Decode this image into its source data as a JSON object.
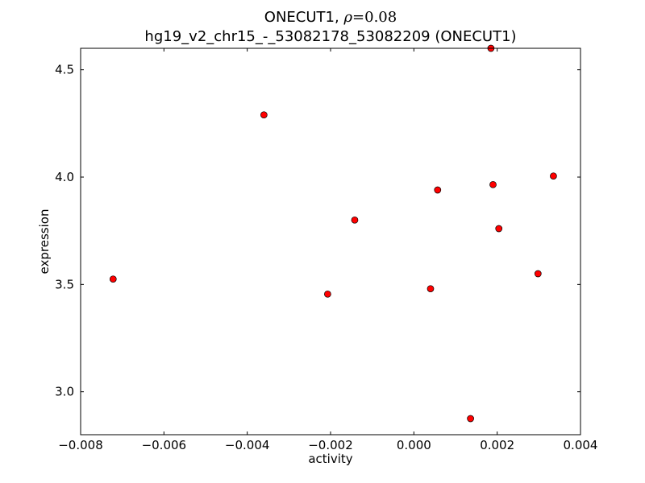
{
  "title": {
    "gene": "ONECUT1,",
    "rho_symbol": "ρ",
    "rho_value": "=0.08",
    "subtitle": "hg19_v2_chr15_-_53082178_53082209 (ONECUT1)"
  },
  "chart_data": {
    "type": "scatter",
    "xlabel": "activity",
    "ylabel": "expression",
    "xlim": [
      -0.008,
      0.004
    ],
    "ylim": [
      2.8,
      4.6
    ],
    "xticks": [
      -0.008,
      -0.006,
      -0.004,
      -0.002,
      0.0,
      0.002,
      0.004
    ],
    "xtick_labels": [
      "−0.008",
      "−0.006",
      "−0.004",
      "−0.002",
      "0.000",
      "0.002",
      "0.004"
    ],
    "yticks": [
      3.0,
      3.5,
      4.0,
      4.5
    ],
    "ytick_labels": [
      "3.0",
      "3.5",
      "4.0",
      "4.5"
    ],
    "grid": false,
    "marker_color": "#ff0000",
    "marker_edge": "#000000",
    "points": [
      {
        "x": -0.00722,
        "y": 3.525
      },
      {
        "x": -0.0036,
        "y": 4.29
      },
      {
        "x": -0.00207,
        "y": 3.455
      },
      {
        "x": -0.00142,
        "y": 3.8
      },
      {
        "x": 0.0004,
        "y": 3.48
      },
      {
        "x": 0.00057,
        "y": 3.94
      },
      {
        "x": 0.00136,
        "y": 2.875
      },
      {
        "x": 0.00185,
        "y": 4.6
      },
      {
        "x": 0.0019,
        "y": 3.965
      },
      {
        "x": 0.00204,
        "y": 3.76
      },
      {
        "x": 0.00298,
        "y": 3.55
      },
      {
        "x": 0.00335,
        "y": 4.005
      }
    ]
  }
}
